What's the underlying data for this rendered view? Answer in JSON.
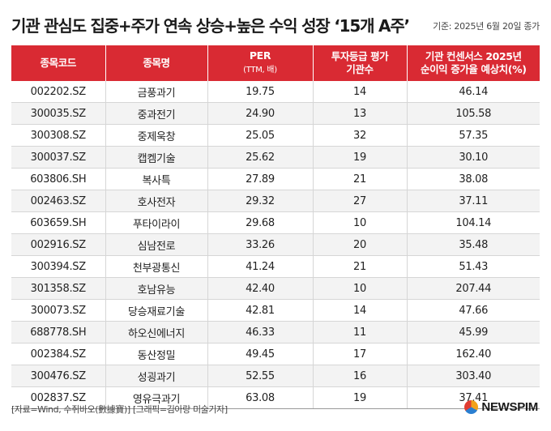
{
  "header": {
    "title": "기관 관심도 집중+주가 연속 상승+높은 수익 성장 ‘15개 A주’",
    "basis_date": "기준: 2025년 6월 20일 종가"
  },
  "table": {
    "columns": [
      {
        "label": "종목코드",
        "sub": ""
      },
      {
        "label": "종목명",
        "sub": ""
      },
      {
        "label": "PER",
        "sub": "(TTM, 배)"
      },
      {
        "label": "투자등급 평가",
        "sub": "기관수"
      },
      {
        "label": "기관 컨센서스 2025년",
        "sub": "순이익 증가율 예상치(%)"
      }
    ],
    "rows": [
      {
        "code": "002202.SZ",
        "name": "금풍과기",
        "per": "19.75",
        "inst": "14",
        "growth": "46.14"
      },
      {
        "code": "300035.SZ",
        "name": "중과전기",
        "per": "24.90",
        "inst": "13",
        "growth": "105.58"
      },
      {
        "code": "300308.SZ",
        "name": "중제욱창",
        "per": "25.05",
        "inst": "32",
        "growth": "57.35"
      },
      {
        "code": "300037.SZ",
        "name": "캡켐기술",
        "per": "25.62",
        "inst": "19",
        "growth": "30.10"
      },
      {
        "code": "603806.SH",
        "name": "복사특",
        "per": "27.89",
        "inst": "21",
        "growth": "38.08"
      },
      {
        "code": "002463.SZ",
        "name": "호사전자",
        "per": "29.32",
        "inst": "27",
        "growth": "37.11"
      },
      {
        "code": "603659.SH",
        "name": "푸타이라이",
        "per": "29.68",
        "inst": "10",
        "growth": "104.14"
      },
      {
        "code": "002916.SZ",
        "name": "심남전로",
        "per": "33.26",
        "inst": "20",
        "growth": "35.48"
      },
      {
        "code": "300394.SZ",
        "name": "천부광통신",
        "per": "41.24",
        "inst": "21",
        "growth": "51.43"
      },
      {
        "code": "301358.SZ",
        "name": "호남유능",
        "per": "42.40",
        "inst": "10",
        "growth": "207.44"
      },
      {
        "code": "300073.SZ",
        "name": "당승재료기술",
        "per": "42.81",
        "inst": "14",
        "growth": "47.66"
      },
      {
        "code": "688778.SH",
        "name": "하오신에너지",
        "per": "46.33",
        "inst": "11",
        "growth": "45.99"
      },
      {
        "code": "002384.SZ",
        "name": "동산정밀",
        "per": "49.45",
        "inst": "17",
        "growth": "162.40"
      },
      {
        "code": "300476.SZ",
        "name": "성굉과기",
        "per": "52.55",
        "inst": "16",
        "growth": "303.40"
      },
      {
        "code": "002837.SZ",
        "name": "영유극과기",
        "per": "63.08",
        "inst": "19",
        "growth": "37.41"
      }
    ]
  },
  "footer": {
    "source": "[자료=Wind, 수쥐바오(數據寶)] [그래픽=김아랑 미술기자]",
    "brand": "NEWSPIM"
  },
  "colors": {
    "header_bg": "#d92a33",
    "stripe_bg": "#f3f3f3"
  }
}
